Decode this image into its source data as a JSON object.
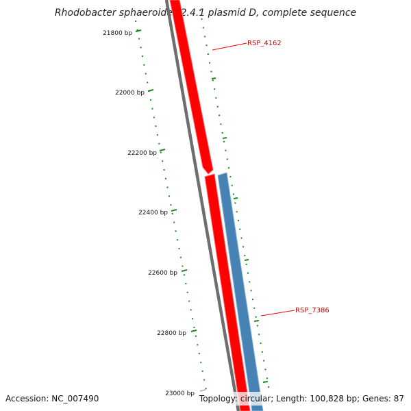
{
  "title": "Rhodobacter sphaeroides 2.4.1 plasmid D, complete sequence",
  "ticks": [
    {
      "label": "21800 bp"
    },
    {
      "label": "22000 bp"
    },
    {
      "label": "22200 bp"
    },
    {
      "label": "22400 bp"
    },
    {
      "label": "22600 bp"
    },
    {
      "label": "22800 bp"
    },
    {
      "label": "23000 bp"
    }
  ],
  "genes": [
    {
      "label": "RSP_4162",
      "color": "#ff0000",
      "strand": "forward"
    },
    {
      "label": "RSP_7386",
      "color": "#4682b4",
      "strand": "reverse"
    }
  ],
  "colors": {
    "backbone": "#777777",
    "tick_marks": "#1a8a1a",
    "label_color": "#cc0000"
  },
  "footer": {
    "accession": "Accession: NC_007490",
    "summary": "Topology: circular; Length: 100,828 bp; Genes: 87"
  }
}
